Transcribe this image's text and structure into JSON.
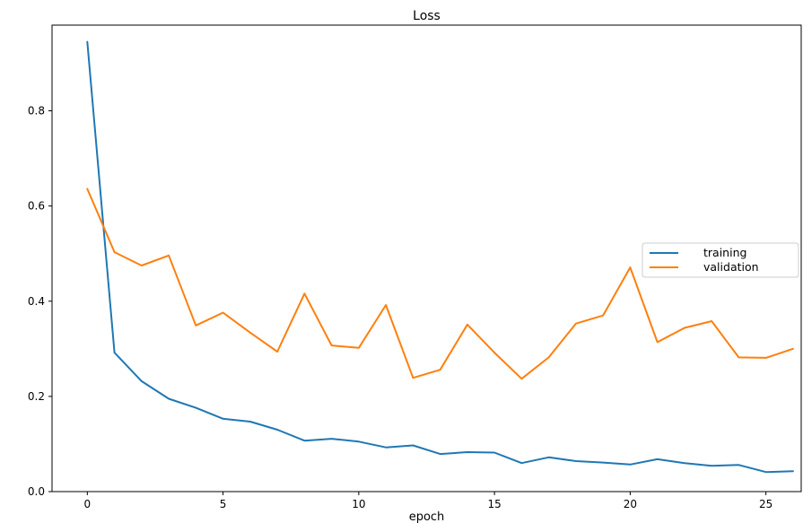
{
  "chart_data": {
    "type": "line",
    "title": "Loss",
    "xlabel": "epoch",
    "ylabel": "",
    "xlim": [
      -1.3,
      26.3
    ],
    "ylim": [
      0,
      0.98
    ],
    "x_ticks": [
      0,
      5,
      10,
      15,
      20,
      25
    ],
    "y_ticks": [
      0.0,
      0.2,
      0.4,
      0.6,
      0.8
    ],
    "x_tick_labels": [
      "0",
      "5",
      "10",
      "15",
      "20",
      "25"
    ],
    "y_tick_labels": [
      "0.0",
      "0.2",
      "0.4",
      "0.6",
      "0.8"
    ],
    "grid": false,
    "legend_position": "center-right",
    "x": [
      0,
      1,
      2,
      3,
      4,
      5,
      6,
      7,
      8,
      9,
      10,
      11,
      12,
      13,
      14,
      15,
      16,
      17,
      18,
      19,
      20,
      21,
      22,
      23,
      24,
      25,
      26
    ],
    "series": [
      {
        "name": "training",
        "color": "#1f77b4",
        "values": [
          0.945,
          0.292,
          0.232,
          0.195,
          0.176,
          0.153,
          0.147,
          0.13,
          0.107,
          0.111,
          0.105,
          0.093,
          0.097,
          0.079,
          0.083,
          0.082,
          0.06,
          0.072,
          0.064,
          0.061,
          0.057,
          0.068,
          0.06,
          0.054,
          0.056,
          0.041,
          0.043
        ]
      },
      {
        "name": "validation",
        "color": "#ff7f0e",
        "values": [
          0.636,
          0.503,
          0.475,
          0.496,
          0.349,
          0.376,
          0.334,
          0.294,
          0.416,
          0.307,
          0.302,
          0.392,
          0.239,
          0.256,
          0.351,
          0.292,
          0.237,
          0.282,
          0.353,
          0.37,
          0.471,
          0.314,
          0.344,
          0.358,
          0.282,
          0.281,
          0.3
        ]
      }
    ]
  }
}
